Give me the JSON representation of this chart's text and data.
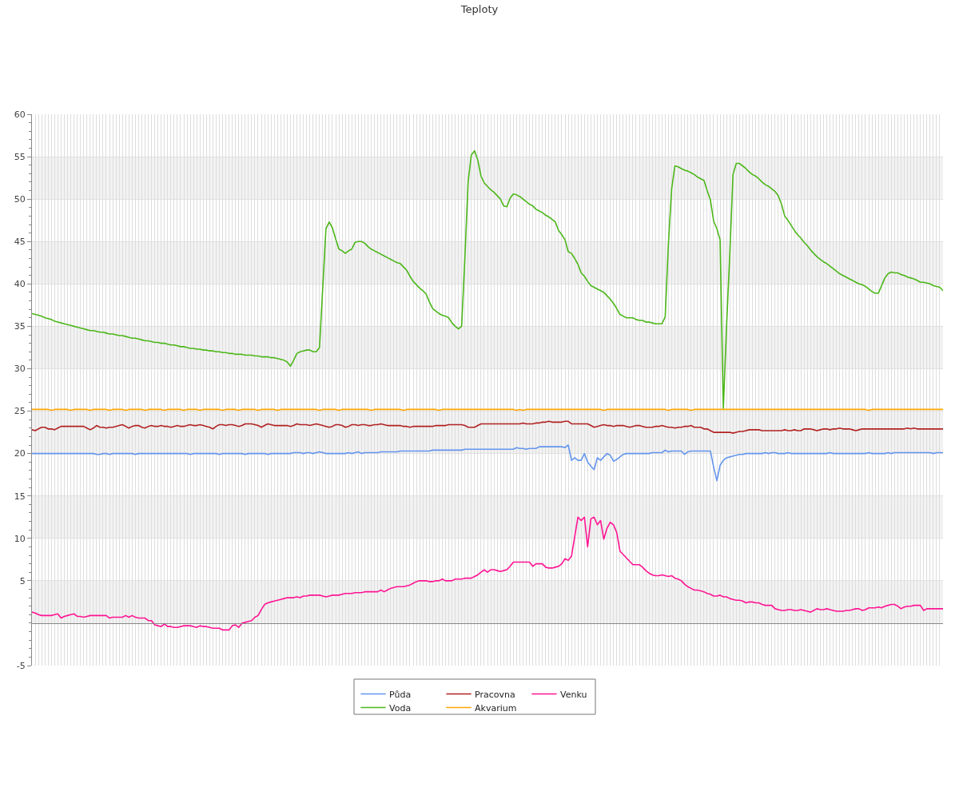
{
  "chart_data": {
    "type": "line",
    "title": "Teploty",
    "categories": [
      null,
      null,
      null,
      null,
      null,
      null,
      null,
      null,
      null,
      null,
      null,
      null,
      null,
      null,
      null,
      null,
      null,
      null,
      null,
      null,
      null,
      null,
      null,
      null,
      null,
      null,
      null,
      null,
      null,
      null,
      null,
      null,
      null,
      null,
      null,
      null,
      null,
      null,
      null,
      null,
      null,
      null,
      null,
      null,
      null,
      null,
      null,
      null,
      null,
      null,
      null,
      null,
      null,
      null,
      null,
      null,
      null,
      null,
      null,
      null,
      null,
      null,
      null,
      null,
      null,
      null,
      null,
      null,
      null,
      null,
      null,
      null,
      null,
      null,
      null,
      null,
      null,
      null,
      null,
      null,
      null,
      null,
      null,
      null,
      null,
      null,
      null,
      null,
      null,
      null,
      null,
      null,
      null,
      null,
      null,
      null,
      null,
      null,
      null,
      null,
      null,
      null,
      null,
      null,
      null,
      null,
      null,
      null,
      null,
      null,
      null,
      null,
      null,
      null,
      null,
      null,
      null,
      null,
      null,
      null,
      null,
      null,
      null,
      null,
      null,
      null,
      null,
      null,
      null,
      null,
      null,
      null,
      null,
      null,
      null,
      null,
      null,
      null,
      null,
      null,
      null,
      null,
      null,
      null,
      null,
      null,
      null,
      null,
      null,
      null,
      null,
      null,
      null,
      null,
      null,
      null,
      null,
      null,
      null,
      null,
      null,
      null,
      null,
      null,
      null,
      null,
      null,
      null,
      null,
      null,
      null,
      null,
      null,
      null,
      null,
      null,
      null,
      null,
      null,
      null,
      null,
      null,
      null,
      null,
      null,
      null,
      null,
      null,
      null,
      null,
      null,
      null,
      null,
      null,
      null,
      null,
      null,
      null,
      null,
      null,
      null,
      null,
      null,
      null,
      null,
      null,
      null,
      null,
      null,
      null,
      null,
      null,
      null,
      null,
      null,
      null,
      null,
      null,
      null,
      null,
      null,
      null,
      null,
      null,
      null,
      null,
      null,
      null,
      null,
      null,
      null,
      null,
      null,
      null,
      null,
      null,
      null,
      null,
      null,
      null,
      null,
      null,
      null,
      null,
      null,
      null,
      null,
      null,
      null,
      null,
      null,
      null,
      null,
      null,
      null,
      null,
      null,
      null,
      null,
      null,
      null,
      null,
      null,
      null,
      null,
      null,
      null,
      null,
      null,
      null,
      null,
      null,
      null,
      null,
      null,
      null,
      null,
      null,
      null,
      null,
      null,
      null,
      null
    ],
    "series": [
      {
        "name": "Půda",
        "color": "#6495ed",
        "values": [
          20.0,
          20.0,
          20.0,
          20.0,
          20.0,
          20.0,
          20.0,
          20.0,
          20.0,
          20.0,
          20.0,
          20.0,
          20.0,
          20.0,
          20.0,
          20.0,
          20.0,
          20.0,
          20.0,
          20.0,
          19.9,
          19.9,
          20.0,
          20.0,
          19.9,
          20.0,
          20.0,
          20.0,
          20.0,
          20.0,
          20.0,
          20.0,
          19.9,
          20.0,
          20.0,
          20.0,
          20.0,
          20.0,
          20.0,
          20.0,
          20.0,
          20.0,
          20.0,
          20.0,
          20.0,
          20.0,
          20.0,
          20.0,
          20.0,
          19.9,
          20.0,
          20.0,
          20.0,
          20.0,
          20.0,
          20.0,
          20.0,
          20.0,
          19.9,
          20.0,
          20.0,
          20.0,
          20.0,
          20.0,
          20.0,
          20.0,
          19.9,
          20.0,
          20.0,
          20.0,
          20.0,
          20.0,
          20.0,
          19.9,
          20.0,
          20.0,
          20.0,
          20.0,
          20.0,
          20.0,
          20.0,
          20.1,
          20.1,
          20.1,
          20.0,
          20.1,
          20.1,
          20.0,
          20.1,
          20.2,
          20.1,
          20.0,
          20.0,
          20.0,
          20.0,
          20.0,
          20.0,
          20.0,
          20.1,
          20.0,
          20.1,
          20.2,
          20.0,
          20.1,
          20.1,
          20.1,
          20.1,
          20.1,
          20.2,
          20.2,
          20.2,
          20.2,
          20.2,
          20.2,
          20.3,
          20.3,
          20.3,
          20.3,
          20.3,
          20.3,
          20.3,
          20.3,
          20.3,
          20.3,
          20.4,
          20.4,
          20.4,
          20.4,
          20.4,
          20.4,
          20.4,
          20.4,
          20.4,
          20.4,
          20.5,
          20.5,
          20.5,
          20.5,
          20.5,
          20.5,
          20.5,
          20.5,
          20.5,
          20.5,
          20.5,
          20.5,
          20.5,
          20.5,
          20.5,
          20.5,
          20.7,
          20.6,
          20.6,
          20.5,
          20.6,
          20.6,
          20.6,
          20.8,
          20.8,
          20.8,
          20.8,
          20.8,
          20.8,
          20.8,
          20.8,
          20.7,
          21.0,
          19.2,
          19.5,
          19.2,
          19.2,
          20.0,
          19.0,
          18.5,
          18.1,
          19.5,
          19.2,
          19.6,
          20.0,
          19.8,
          19.1,
          19.3,
          19.6,
          19.9,
          20.0,
          20.0,
          20.0,
          20.0,
          20.0,
          20.0,
          20.0,
          20.0,
          20.1,
          20.1,
          20.1,
          20.1,
          20.4,
          20.2,
          20.3,
          20.3,
          20.3,
          20.3,
          19.9,
          20.2,
          20.3,
          20.3,
          20.3,
          20.3,
          20.3,
          20.3,
          20.3,
          18.4,
          16.8,
          18.6,
          19.2,
          19.5,
          19.6,
          19.7,
          19.8,
          19.9,
          19.9,
          20.0,
          20.0,
          20.0,
          20.0,
          20.0,
          20.0,
          20.1,
          20.0,
          20.1,
          20.1,
          20.0,
          20.0,
          20.0,
          20.1,
          20.0,
          20.0,
          20.0,
          20.0,
          20.0,
          20.0,
          20.0,
          20.0,
          20.0,
          20.0,
          20.0,
          20.0,
          20.1,
          20.0,
          20.0,
          20.0,
          20.0,
          20.0,
          20.0,
          20.0,
          20.0,
          20.0,
          20.0,
          20.0,
          20.1,
          20.0,
          20.0,
          20.0,
          20.0,
          20.0,
          20.1,
          20.0,
          20.1,
          20.1,
          20.1,
          20.1,
          20.1,
          20.1,
          20.1,
          20.1,
          20.1,
          20.1,
          20.1,
          20.1,
          20.0,
          20.1,
          20.1,
          20.1
        ]
      },
      {
        "name": "Voda",
        "color": "#4cb71a",
        "values": [
          36.5,
          36.4,
          36.3,
          36.2,
          36.0,
          35.9,
          35.8,
          35.6,
          35.5,
          35.4,
          35.3,
          35.2,
          35.1,
          35.0,
          34.9,
          34.8,
          34.7,
          34.6,
          34.5,
          34.5,
          34.4,
          34.3,
          34.3,
          34.2,
          34.1,
          34.1,
          34.0,
          33.9,
          33.9,
          33.8,
          33.7,
          33.6,
          33.6,
          33.5,
          33.4,
          33.3,
          33.3,
          33.2,
          33.1,
          33.1,
          33.0,
          33.0,
          32.9,
          32.8,
          32.8,
          32.7,
          32.6,
          32.6,
          32.5,
          32.4,
          32.4,
          32.3,
          32.3,
          32.2,
          32.2,
          32.1,
          32.1,
          32.0,
          32.0,
          31.9,
          31.9,
          31.8,
          31.8,
          31.7,
          31.7,
          31.7,
          31.6,
          31.6,
          31.6,
          31.5,
          31.5,
          31.4,
          31.4,
          31.4,
          31.3,
          31.3,
          31.2,
          31.1,
          31.0,
          30.8,
          30.3,
          31.0,
          31.8,
          32.0,
          32.1,
          32.2,
          32.2,
          32.0,
          32.0,
          32.5,
          39.5,
          46.5,
          47.3,
          46.6,
          45.3,
          44.1,
          43.9,
          43.6,
          43.9,
          44.1,
          44.9,
          45.0,
          45.0,
          44.8,
          44.4,
          44.1,
          43.9,
          43.7,
          43.5,
          43.3,
          43.1,
          42.9,
          42.7,
          42.5,
          42.4,
          42.0,
          41.6,
          40.9,
          40.3,
          39.9,
          39.5,
          39.2,
          38.8,
          37.9,
          37.1,
          36.8,
          36.5,
          36.3,
          36.2,
          36.0,
          35.4,
          35.0,
          34.7,
          35.0,
          43.0,
          52.0,
          55.2,
          55.7,
          54.6,
          52.7,
          51.9,
          51.5,
          51.1,
          50.8,
          50.4,
          50.0,
          49.2,
          49.1,
          50.1,
          50.6,
          50.5,
          50.3,
          50.0,
          49.7,
          49.4,
          49.2,
          48.8,
          48.6,
          48.4,
          48.1,
          47.9,
          47.6,
          47.3,
          46.3,
          45.8,
          45.2,
          43.8,
          43.6,
          43.0,
          42.3,
          41.3,
          40.9,
          40.3,
          39.8,
          39.6,
          39.4,
          39.2,
          39.0,
          38.6,
          38.2,
          37.7,
          37.1,
          36.4,
          36.2,
          36.0,
          36.0,
          36.0,
          35.8,
          35.7,
          35.7,
          35.5,
          35.5,
          35.4,
          35.3,
          35.3,
          35.3,
          36.1,
          44.7,
          51.2,
          53.9,
          53.8,
          53.6,
          53.4,
          53.3,
          53.1,
          52.9,
          52.6,
          52.4,
          52.2,
          51.0,
          49.9,
          47.4,
          46.5,
          45.2,
          25.3,
          35.0,
          43.5,
          52.9,
          54.2,
          54.2,
          53.9,
          53.6,
          53.2,
          52.9,
          52.7,
          52.4,
          52.0,
          51.7,
          51.5,
          51.2,
          50.9,
          50.4,
          49.4,
          48.0,
          47.5,
          46.9,
          46.3,
          45.8,
          45.4,
          44.9,
          44.5,
          44.0,
          43.6,
          43.2,
          42.9,
          42.6,
          42.4,
          42.1,
          41.8,
          41.5,
          41.2,
          41.0,
          40.8,
          40.6,
          40.4,
          40.2,
          40.0,
          39.9,
          39.7,
          39.4,
          39.1,
          38.9,
          38.9,
          39.8,
          40.7,
          41.2,
          41.4,
          41.3,
          41.3,
          41.1,
          41.0,
          40.8,
          40.7,
          40.6,
          40.4,
          40.2,
          40.2,
          40.1,
          40.0,
          39.8,
          39.7,
          39.6,
          39.2
        ]
      },
      {
        "name": "Pracovna",
        "color": "#b22222",
        "values": [
          22.8,
          22.7,
          22.9,
          23.1,
          23.1,
          22.9,
          22.9,
          22.8,
          23.0,
          23.2,
          23.2,
          23.2,
          23.2,
          23.2,
          23.2,
          23.2,
          23.2,
          23.0,
          22.8,
          23.0,
          23.3,
          23.1,
          23.1,
          23.0,
          23.1,
          23.1,
          23.2,
          23.3,
          23.4,
          23.2,
          23.0,
          23.2,
          23.3,
          23.3,
          23.1,
          23.0,
          23.2,
          23.3,
          23.2,
          23.2,
          23.3,
          23.2,
          23.2,
          23.1,
          23.2,
          23.3,
          23.2,
          23.2,
          23.3,
          23.4,
          23.3,
          23.3,
          23.4,
          23.3,
          23.2,
          23.1,
          22.9,
          23.2,
          23.4,
          23.4,
          23.3,
          23.4,
          23.4,
          23.3,
          23.2,
          23.3,
          23.5,
          23.5,
          23.5,
          23.4,
          23.3,
          23.1,
          23.3,
          23.5,
          23.4,
          23.3,
          23.3,
          23.3,
          23.3,
          23.3,
          23.2,
          23.3,
          23.5,
          23.4,
          23.4,
          23.4,
          23.3,
          23.4,
          23.5,
          23.4,
          23.3,
          23.2,
          23.1,
          23.2,
          23.4,
          23.4,
          23.3,
          23.1,
          23.2,
          23.4,
          23.4,
          23.3,
          23.4,
          23.4,
          23.3,
          23.3,
          23.4,
          23.4,
          23.5,
          23.4,
          23.3,
          23.3,
          23.3,
          23.3,
          23.3,
          23.2,
          23.2,
          23.1,
          23.2,
          23.2,
          23.2,
          23.2,
          23.2,
          23.2,
          23.2,
          23.3,
          23.3,
          23.3,
          23.3,
          23.4,
          23.4,
          23.4,
          23.4,
          23.4,
          23.3,
          23.1,
          23.1,
          23.1,
          23.3,
          23.5,
          23.5,
          23.5,
          23.5,
          23.5,
          23.5,
          23.5,
          23.5,
          23.5,
          23.5,
          23.5,
          23.5,
          23.5,
          23.6,
          23.5,
          23.5,
          23.5,
          23.6,
          23.6,
          23.7,
          23.7,
          23.8,
          23.7,
          23.7,
          23.7,
          23.7,
          23.8,
          23.8,
          23.5,
          23.5,
          23.5,
          23.5,
          23.5,
          23.5,
          23.3,
          23.1,
          23.2,
          23.3,
          23.4,
          23.3,
          23.3,
          23.2,
          23.3,
          23.3,
          23.3,
          23.2,
          23.1,
          23.2,
          23.3,
          23.3,
          23.2,
          23.1,
          23.1,
          23.1,
          23.2,
          23.2,
          23.3,
          23.2,
          23.1,
          23.1,
          23.0,
          23.1,
          23.1,
          23.2,
          23.2,
          23.3,
          23.1,
          23.1,
          23.1,
          22.9,
          22.9,
          22.7,
          22.5,
          22.5,
          22.5,
          22.5,
          22.5,
          22.5,
          22.4,
          22.5,
          22.6,
          22.6,
          22.7,
          22.8,
          22.8,
          22.8,
          22.8,
          22.7,
          22.7,
          22.7,
          22.7,
          22.7,
          22.7,
          22.7,
          22.8,
          22.7,
          22.7,
          22.8,
          22.7,
          22.7,
          22.9,
          22.9,
          22.9,
          22.8,
          22.7,
          22.8,
          22.9,
          22.9,
          22.8,
          22.9,
          22.9,
          23.0,
          22.9,
          22.9,
          22.9,
          22.8,
          22.7,
          22.8,
          22.9,
          22.9,
          22.9,
          22.9,
          22.9,
          22.9,
          22.9,
          22.9,
          22.9,
          22.9,
          22.9,
          22.9,
          22.9,
          22.9,
          23.0,
          22.9,
          23.0,
          22.9,
          22.9,
          22.9,
          22.9,
          22.9,
          22.9,
          22.9,
          22.9,
          22.9
        ]
      },
      {
        "name": "Akvarium",
        "color": "#ffa500",
        "values": [
          25.2,
          25.2,
          25.2,
          25.2,
          25.2,
          25.2,
          25.1,
          25.2,
          25.2,
          25.2,
          25.2,
          25.2,
          25.1,
          25.2,
          25.2,
          25.2,
          25.2,
          25.2,
          25.1,
          25.2,
          25.2,
          25.2,
          25.2,
          25.2,
          25.1,
          25.2,
          25.2,
          25.2,
          25.2,
          25.1,
          25.2,
          25.2,
          25.2,
          25.2,
          25.2,
          25.1,
          25.2,
          25.2,
          25.2,
          25.2,
          25.2,
          25.1,
          25.2,
          25.2,
          25.2,
          25.2,
          25.2,
          25.1,
          25.2,
          25.2,
          25.2,
          25.2,
          25.1,
          25.2,
          25.2,
          25.2,
          25.2,
          25.2,
          25.2,
          25.1,
          25.2,
          25.2,
          25.2,
          25.2,
          25.1,
          25.2,
          25.2,
          25.2,
          25.2,
          25.2,
          25.1,
          25.2,
          25.2,
          25.2,
          25.2,
          25.2,
          25.1,
          25.2,
          25.2,
          25.2,
          25.2,
          25.2,
          25.2,
          25.2,
          25.2,
          25.2,
          25.2,
          25.2,
          25.2,
          25.1,
          25.2,
          25.2,
          25.2,
          25.2,
          25.2,
          25.1,
          25.2,
          25.2,
          25.2,
          25.2,
          25.2,
          25.2,
          25.2,
          25.2,
          25.2,
          25.1,
          25.2,
          25.2,
          25.2,
          25.2,
          25.2,
          25.2,
          25.2,
          25.2,
          25.2,
          25.1,
          25.2,
          25.2,
          25.2,
          25.2,
          25.2,
          25.2,
          25.2,
          25.2,
          25.2,
          25.2,
          25.1,
          25.2,
          25.2,
          25.2,
          25.2,
          25.2,
          25.2,
          25.2,
          25.2,
          25.2,
          25.2,
          25.2,
          25.2,
          25.2,
          25.2,
          25.2,
          25.2,
          25.2,
          25.2,
          25.2,
          25.2,
          25.2,
          25.2,
          25.2,
          25.1,
          25.2,
          25.1,
          25.2,
          25.2,
          25.2,
          25.2,
          25.2,
          25.2,
          25.2,
          25.2,
          25.2,
          25.2,
          25.2,
          25.2,
          25.2,
          25.2,
          25.2,
          25.2,
          25.2,
          25.2,
          25.2,
          25.2,
          25.2,
          25.2,
          25.2,
          25.2,
          25.1,
          25.2,
          25.2,
          25.2,
          25.2,
          25.2,
          25.2,
          25.2,
          25.2,
          25.2,
          25.2,
          25.2,
          25.2,
          25.2,
          25.2,
          25.2,
          25.2,
          25.2,
          25.2,
          25.2,
          25.1,
          25.2,
          25.2,
          25.2,
          25.2,
          25.2,
          25.2,
          25.1,
          25.2,
          25.2,
          25.2,
          25.2,
          25.2,
          25.2,
          25.2,
          25.2,
          25.2,
          25.2,
          25.2,
          25.2,
          25.2,
          25.2,
          25.2,
          25.2,
          25.2,
          25.2,
          25.2,
          25.2,
          25.2,
          25.2,
          25.2,
          25.2,
          25.2,
          25.2,
          25.2,
          25.2,
          25.2,
          25.2,
          25.2,
          25.2,
          25.2,
          25.2,
          25.2,
          25.2,
          25.2,
          25.2,
          25.2,
          25.2,
          25.2,
          25.2,
          25.2,
          25.2,
          25.2,
          25.2,
          25.2,
          25.2,
          25.2,
          25.2,
          25.2,
          25.2,
          25.2,
          25.2,
          25.1,
          25.2,
          25.2,
          25.2,
          25.2,
          25.2,
          25.2,
          25.2,
          25.2,
          25.2,
          25.2,
          25.2,
          25.2,
          25.2,
          25.2,
          25.2,
          25.2,
          25.2,
          25.2,
          25.2,
          25.2,
          25.2,
          25.2,
          25.2
        ]
      },
      {
        "name": "Venku",
        "color": "#ff1493",
        "values": [
          1.3,
          1.2,
          1.0,
          0.9,
          0.9,
          0.9,
          0.9,
          1.0,
          1.1,
          0.6,
          0.8,
          0.9,
          1.0,
          1.1,
          0.8,
          0.8,
          0.7,
          0.8,
          0.9,
          0.9,
          0.9,
          0.9,
          0.9,
          0.9,
          0.6,
          0.7,
          0.7,
          0.7,
          0.7,
          0.9,
          0.7,
          0.9,
          0.7,
          0.6,
          0.6,
          0.6,
          0.3,
          0.3,
          -0.2,
          -0.3,
          -0.4,
          -0.1,
          -0.4,
          -0.4,
          -0.5,
          -0.5,
          -0.4,
          -0.3,
          -0.3,
          -0.3,
          -0.4,
          -0.5,
          -0.3,
          -0.4,
          -0.4,
          -0.5,
          -0.6,
          -0.6,
          -0.6,
          -0.8,
          -0.8,
          -0.8,
          -0.3,
          -0.2,
          -0.5,
          0.0,
          0.1,
          0.2,
          0.3,
          0.7,
          0.9,
          1.6,
          2.2,
          2.4,
          2.5,
          2.6,
          2.7,
          2.8,
          2.9,
          3.0,
          3.0,
          3.0,
          3.1,
          3.0,
          3.2,
          3.2,
          3.3,
          3.3,
          3.3,
          3.3,
          3.2,
          3.1,
          3.2,
          3.3,
          3.3,
          3.3,
          3.4,
          3.5,
          3.5,
          3.5,
          3.6,
          3.6,
          3.6,
          3.7,
          3.7,
          3.7,
          3.7,
          3.7,
          3.9,
          3.7,
          3.9,
          4.1,
          4.2,
          4.3,
          4.3,
          4.3,
          4.4,
          4.5,
          4.7,
          4.9,
          5.0,
          5.0,
          5.0,
          4.9,
          4.9,
          5.0,
          5.0,
          5.2,
          5.0,
          5.0,
          5.0,
          5.2,
          5.2,
          5.2,
          5.3,
          5.3,
          5.3,
          5.5,
          5.7,
          6.0,
          6.3,
          6.0,
          6.3,
          6.3,
          6.2,
          6.1,
          6.2,
          6.3,
          6.7,
          7.2,
          7.2,
          7.2,
          7.2,
          7.2,
          7.2,
          6.7,
          7.0,
          7.0,
          7.0,
          6.6,
          6.5,
          6.5,
          6.6,
          6.7,
          7.0,
          7.6,
          7.4,
          7.9,
          10.2,
          12.5,
          12.1,
          12.5,
          9.0,
          12.3,
          12.5,
          11.6,
          12.1,
          9.9,
          11.2,
          11.9,
          11.6,
          10.7,
          8.5,
          8.1,
          7.7,
          7.3,
          6.9,
          6.9,
          6.9,
          6.6,
          6.2,
          5.9,
          5.7,
          5.6,
          5.6,
          5.7,
          5.6,
          5.5,
          5.6,
          5.3,
          5.2,
          5.0,
          4.6,
          4.3,
          4.1,
          3.9,
          3.9,
          3.8,
          3.7,
          3.5,
          3.4,
          3.2,
          3.2,
          3.3,
          3.1,
          3.1,
          2.9,
          2.8,
          2.7,
          2.7,
          2.6,
          2.4,
          2.5,
          2.5,
          2.4,
          2.4,
          2.2,
          2.1,
          2.1,
          2.1,
          1.7,
          1.6,
          1.5,
          1.5,
          1.6,
          1.6,
          1.5,
          1.5,
          1.6,
          1.5,
          1.4,
          1.3,
          1.5,
          1.7,
          1.6,
          1.6,
          1.7,
          1.6,
          1.5,
          1.4,
          1.4,
          1.4,
          1.5,
          1.5,
          1.6,
          1.7,
          1.7,
          1.5,
          1.6,
          1.8,
          1.8,
          1.8,
          1.9,
          1.8,
          2.0,
          2.1,
          2.2,
          2.2,
          2.0,
          1.7,
          1.9,
          2.0,
          2.0,
          2.1,
          2.1,
          2.1,
          1.5,
          1.7,
          1.7,
          1.7,
          1.7,
          1.7,
          1.7
        ]
      }
    ],
    "ylim": [
      -5,
      60
    ],
    "yticks": [
      -5,
      {
        "value": -4,
        "label": null
      },
      {
        "value": -3,
        "label": null
      },
      {
        "value": -2,
        "label": null
      },
      {
        "value": -1,
        "label": null
      },
      {
        "value": 0,
        "label": null
      },
      {
        "value": 1,
        "label": null
      },
      {
        "value": 2,
        "label": null
      },
      {
        "value": 3,
        "label": null
      },
      {
        "value": 4,
        "label": null
      },
      5,
      {
        "value": 6,
        "label": null
      },
      {
        "value": 7,
        "label": null
      },
      {
        "value": 8,
        "label": null
      },
      {
        "value": 9,
        "label": null
      },
      10,
      {
        "value": 11,
        "label": null
      },
      {
        "value": 12,
        "label": null
      },
      {
        "value": 13,
        "label": null
      },
      {
        "value": 14,
        "label": null
      },
      15,
      {
        "value": 16,
        "label": null
      },
      {
        "value": 17,
        "label": null
      },
      {
        "value": 18,
        "label": null
      },
      {
        "value": 19,
        "label": null
      },
      20,
      {
        "value": 21,
        "label": null
      },
      {
        "value": 22,
        "label": null
      },
      {
        "value": 23,
        "label": null
      },
      {
        "value": 24,
        "label": null
      },
      25,
      {
        "value": 26,
        "label": null
      },
      {
        "value": 27,
        "label": null
      },
      {
        "value": 28,
        "label": null
      },
      {
        "value": 29,
        "label": null
      },
      30,
      {
        "value": 31,
        "label": null
      },
      {
        "value": 32,
        "label": null
      },
      {
        "value": 33,
        "label": null
      },
      {
        "value": 34,
        "label": null
      },
      35,
      {
        "value": 36,
        "label": null
      },
      {
        "value": 37,
        "label": null
      },
      {
        "value": 38,
        "label": null
      },
      {
        "value": 39,
        "label": null
      },
      40,
      {
        "value": 41,
        "label": null
      },
      {
        "value": 42,
        "label": null
      },
      {
        "value": 43,
        "label": null
      },
      {
        "value": 44,
        "label": null
      },
      45,
      {
        "value": 46,
        "label": null
      },
      {
        "value": 47,
        "label": null
      },
      {
        "value": 48,
        "label": null
      },
      {
        "value": 49,
        "label": null
      },
      50,
      {
        "value": 51,
        "label": null
      },
      {
        "value": 52,
        "label": null
      },
      {
        "value": 53,
        "label": null
      },
      {
        "value": 54,
        "label": null
      },
      55,
      {
        "value": 56,
        "label": null
      },
      {
        "value": 57,
        "label": null
      },
      {
        "value": 58,
        "label": null
      },
      {
        "value": 59,
        "label": null
      },
      60
    ],
    "bands": [
      {
        "axis": "y",
        "from": 0,
        "to": 5,
        "color": "#f2f2f2"
      },
      {
        "axis": "y",
        "from": 10,
        "to": 15,
        "color": "#f2f2f2"
      },
      {
        "axis": "y",
        "from": 20,
        "to": 25,
        "color": "#f2f2f2"
      },
      {
        "axis": "y",
        "from": 30,
        "to": 35,
        "color": "#f2f2f2"
      },
      {
        "axis": "y",
        "from": 40,
        "to": 45,
        "color": "#f2f2f2"
      },
      {
        "axis": "y",
        "from": 50,
        "to": 55,
        "color": "#f2f2f2"
      }
    ],
    "grid": true,
    "legend": "bottom",
    "line_style": "solid"
  }
}
